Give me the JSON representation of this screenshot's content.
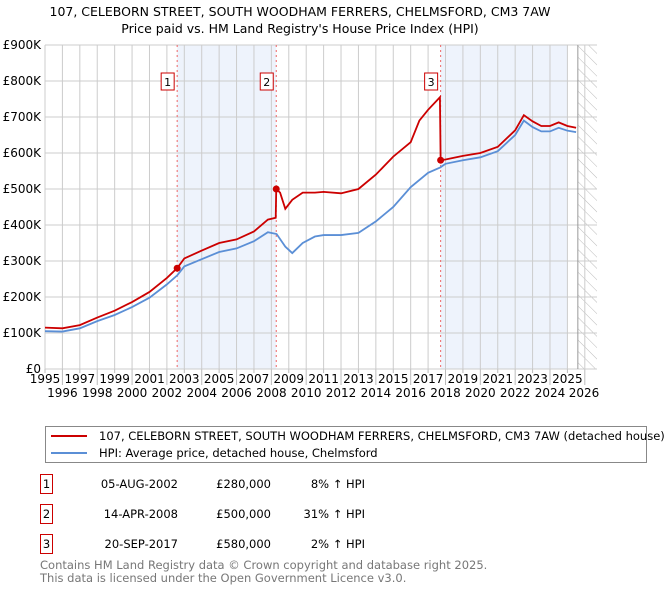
{
  "chart_data": {
    "type": "line",
    "title": "107, CELEBORN STREET, SOUTH WOODHAM FERRERS, CHELMSFORD, CM3 7AW",
    "subtitle": "Price paid vs. HM Land Registry's House Price Index (HPI)",
    "xlabel": "",
    "ylabel": "",
    "xlim": [
      1995,
      2026.7
    ],
    "ylim": [
      0,
      900000
    ],
    "yticks": [
      {
        "v": 0,
        "label": "£0"
      },
      {
        "v": 100000,
        "label": "£100K"
      },
      {
        "v": 200000,
        "label": "£200K"
      },
      {
        "v": 300000,
        "label": "£300K"
      },
      {
        "v": 400000,
        "label": "£400K"
      },
      {
        "v": 500000,
        "label": "£500K"
      },
      {
        "v": 600000,
        "label": "£600K"
      },
      {
        "v": 700000,
        "label": "£700K"
      },
      {
        "v": 800000,
        "label": "£800K"
      },
      {
        "v": 900000,
        "label": "£900K"
      }
    ],
    "xticks": [
      "1995",
      "1996",
      "1997",
      "1998",
      "1999",
      "2000",
      "2001",
      "2002",
      "2003",
      "2004",
      "2005",
      "2006",
      "2007",
      "2008",
      "2009",
      "2010",
      "2011",
      "2012",
      "2013",
      "2014",
      "2015",
      "2016",
      "2017",
      "2018",
      "2019",
      "2020",
      "2021",
      "2022",
      "2023",
      "2024",
      "2025",
      "2026"
    ],
    "grid": true,
    "shaded_ranges": [
      [
        2002.59,
        2008.28
      ],
      [
        2017.72,
        2025.0
      ]
    ],
    "forecast_from": 2025.6,
    "series": [
      {
        "name": "107, CELEBORN STREET, SOUTH WOODHAM FERRERS, CHELMSFORD, CM3 7AW (detached house)",
        "color": "#cc0000",
        "points": [
          [
            1995,
            115
          ],
          [
            1996,
            113
          ],
          [
            1997,
            122
          ],
          [
            1998,
            143
          ],
          [
            1999,
            162
          ],
          [
            2000,
            186
          ],
          [
            2001,
            214
          ],
          [
            2002,
            253
          ],
          [
            2002.59,
            280
          ],
          [
            2003,
            307
          ],
          [
            2004,
            329
          ],
          [
            2005,
            350
          ],
          [
            2006,
            360
          ],
          [
            2007,
            382
          ],
          [
            2007.8,
            415
          ],
          [
            2008.25,
            420
          ],
          [
            2008.28,
            500
          ],
          [
            2008.5,
            490
          ],
          [
            2008.8,
            445
          ],
          [
            2009.2,
            470
          ],
          [
            2009.8,
            490
          ],
          [
            2010.5,
            490
          ],
          [
            2011,
            492
          ],
          [
            2012,
            488
          ],
          [
            2013,
            500
          ],
          [
            2014,
            540
          ],
          [
            2015,
            590
          ],
          [
            2016,
            630
          ],
          [
            2016.5,
            690
          ],
          [
            2017,
            720
          ],
          [
            2017.68,
            755
          ],
          [
            2017.72,
            580
          ],
          [
            2018,
            582
          ],
          [
            2019,
            592
          ],
          [
            2020,
            600
          ],
          [
            2021,
            617
          ],
          [
            2022,
            663
          ],
          [
            2022.5,
            705
          ],
          [
            2023,
            688
          ],
          [
            2023.5,
            675
          ],
          [
            2024,
            675
          ],
          [
            2024.5,
            685
          ],
          [
            2025,
            675
          ],
          [
            2025.5,
            670
          ]
        ]
      },
      {
        "name": "HPI: Average price, detached house, Chelmsford",
        "color": "#5b8fd6",
        "points": [
          [
            1995,
            105
          ],
          [
            1996,
            104
          ],
          [
            1997,
            113
          ],
          [
            1998,
            133
          ],
          [
            1999,
            150
          ],
          [
            2000,
            172
          ],
          [
            2001,
            198
          ],
          [
            2002,
            235
          ],
          [
            2002.59,
            260
          ],
          [
            2003,
            285
          ],
          [
            2004,
            305
          ],
          [
            2005,
            325
          ],
          [
            2006,
            335
          ],
          [
            2007,
            355
          ],
          [
            2007.8,
            380
          ],
          [
            2008.3,
            375
          ],
          [
            2008.8,
            340
          ],
          [
            2009.2,
            322
          ],
          [
            2009.8,
            350
          ],
          [
            2010.5,
            368
          ],
          [
            2011,
            372
          ],
          [
            2012,
            372
          ],
          [
            2013,
            378
          ],
          [
            2014,
            410
          ],
          [
            2015,
            450
          ],
          [
            2016,
            505
          ],
          [
            2017,
            545
          ],
          [
            2017.7,
            560
          ],
          [
            2018,
            570
          ],
          [
            2019,
            580
          ],
          [
            2020,
            588
          ],
          [
            2021,
            605
          ],
          [
            2022,
            650
          ],
          [
            2022.5,
            690
          ],
          [
            2023,
            672
          ],
          [
            2023.5,
            660
          ],
          [
            2024,
            660
          ],
          [
            2024.5,
            670
          ],
          [
            2025,
            662
          ],
          [
            2025.5,
            658
          ]
        ]
      }
    ],
    "sales": [
      {
        "label": "1",
        "x": 2002.59,
        "value": 280000
      },
      {
        "label": "2",
        "x": 2008.28,
        "value": 500000
      },
      {
        "label": "3",
        "x": 2017.72,
        "value": 580000
      }
    ]
  },
  "legend": {
    "property": "107, CELEBORN STREET, SOUTH WOODHAM FERRERS, CHELMSFORD, CM3 7AW (detached house)",
    "hpi": "HPI: Average price, detached house, Chelmsford"
  },
  "table": [
    {
      "num": "1",
      "date": "05-AUG-2002",
      "price": "£280,000",
      "pct": "8% ↑ HPI"
    },
    {
      "num": "2",
      "date": "14-APR-2008",
      "price": "£500,000",
      "pct": "31% ↑ HPI"
    },
    {
      "num": "3",
      "date": "20-SEP-2017",
      "price": "£580,000",
      "pct": "2% ↑ HPI"
    }
  ],
  "footer": {
    "line1": "Contains HM Land Registry data © Crown copyright and database right 2025.",
    "line2": "This data is licensed under the Open Government Licence v3.0."
  }
}
